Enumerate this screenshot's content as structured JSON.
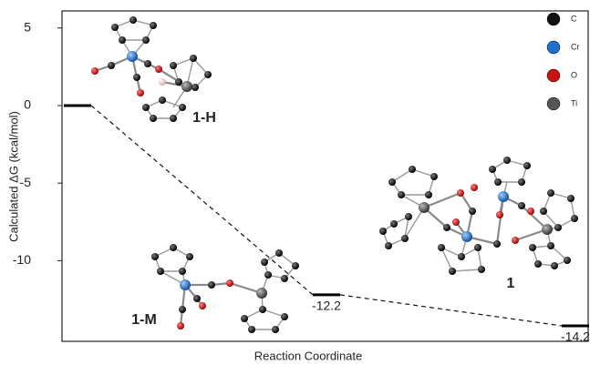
{
  "chart_data": {
    "type": "energy",
    "x_label": "Reaction Coordinate",
    "y_label": "Calculated ΔG (kcal/mol)",
    "categories": [
      null,
      null,
      null
    ],
    "values": [
      0,
      -12.2,
      -14.2
    ],
    "value_labels": [
      null,
      "-12.2",
      "-14.2"
    ],
    "ylim": [
      -15.2,
      6.1
    ],
    "yticks": [
      5,
      0,
      -5,
      -10
    ],
    "color": "#000000",
    "annotations": [
      "1-H",
      "1-M",
      "1"
    ],
    "legend": [
      {
        "name": "C",
        "color": "#111111"
      },
      {
        "name": "Cr",
        "color": "#1f6fcf"
      },
      {
        "name": "O",
        "color": "#cc1111"
      },
      {
        "name": "Ti",
        "color": "#555555"
      }
    ]
  }
}
